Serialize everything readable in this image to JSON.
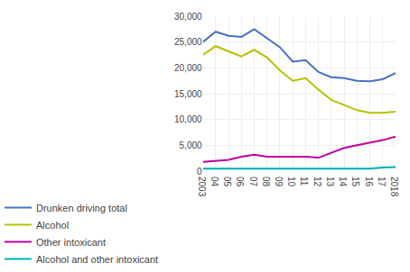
{
  "chart_data": {
    "type": "line",
    "x": [
      2003,
      2004,
      2005,
      2006,
      2007,
      2008,
      2009,
      2010,
      2011,
      2012,
      2013,
      2014,
      2015,
      2016,
      2017,
      2018
    ],
    "series": [
      {
        "name": "Drunken driving total",
        "color": "#4472c4",
        "values": [
          25000,
          27000,
          26200,
          26000,
          27500,
          25800,
          24000,
          21200,
          21500,
          19200,
          18200,
          18000,
          17500,
          17400,
          17800,
          19000
        ]
      },
      {
        "name": "Alcohol",
        "color": "#b5c200",
        "values": [
          22500,
          24200,
          23200,
          22200,
          23500,
          22000,
          19500,
          17500,
          18000,
          15800,
          13800,
          12800,
          11800,
          11300,
          11300,
          11500
        ]
      },
      {
        "name": "Other intoxicant",
        "color": "#c000a0",
        "values": [
          1800,
          2000,
          2200,
          2800,
          3200,
          2800,
          2800,
          2800,
          2800,
          2600,
          3500,
          4500,
          5000,
          5500,
          6000,
          6700
        ]
      },
      {
        "name": "Alcohol and other intoxicant",
        "color": "#00b0b8",
        "values": [
          500,
          500,
          500,
          500,
          500,
          500,
          500,
          500,
          500,
          500,
          500,
          500,
          500,
          500,
          700,
          800
        ]
      }
    ],
    "xlim": [
      2003,
      2018
    ],
    "xticks": [
      2003,
      {
        "value": 2004,
        "label": "04"
      },
      {
        "value": 2005,
        "label": "05"
      },
      {
        "value": 2006,
        "label": "06"
      },
      {
        "value": 2007,
        "label": "07"
      },
      {
        "value": 2008,
        "label": "08"
      },
      {
        "value": 2009,
        "label": "09"
      },
      {
        "value": 2010,
        "label": "10"
      },
      {
        "value": 2011,
        "label": "11"
      },
      {
        "value": 2012,
        "label": "12"
      },
      {
        "value": 2013,
        "label": "13"
      },
      {
        "value": 2014,
        "label": "14"
      },
      {
        "value": 2015,
        "label": "15"
      },
      {
        "value": 2016,
        "label": "16"
      },
      {
        "value": 2017,
        "label": "17"
      },
      2018
    ],
    "ylim": [
      0,
      30000
    ],
    "yticks": [
      0,
      {
        "value": 5000,
        "label": "5,000"
      },
      {
        "value": 10000,
        "label": "10,000"
      },
      {
        "value": 15000,
        "label": "15,000"
      },
      {
        "value": 20000,
        "label": "20,000"
      },
      {
        "value": 25000,
        "label": "25,000"
      },
      {
        "value": 30000,
        "label": "30,000"
      }
    ],
    "grid": true,
    "legend": "bottom"
  }
}
